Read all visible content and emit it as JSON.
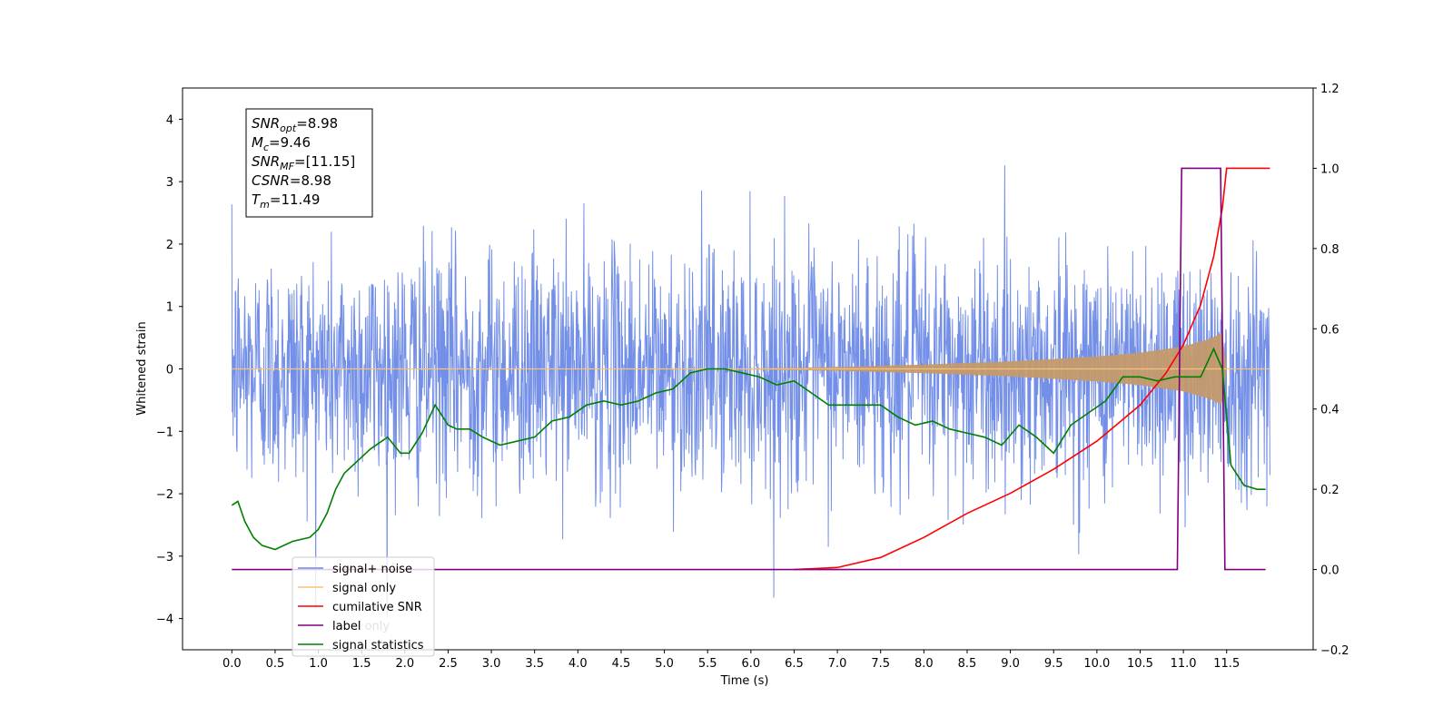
{
  "chart_data": {
    "type": "line",
    "xlabel": "Time (s)",
    "ylabel": "Whitened strain",
    "xlim": [
      -0.57,
      12.5
    ],
    "ylim": [
      -4.5,
      4.5
    ],
    "y2lim": [
      -0.2,
      1.2
    ],
    "x_ticks": [
      "0.0",
      "0.5",
      "1.0",
      "1.5",
      "2.0",
      "2.5",
      "3.0",
      "3.5",
      "4.0",
      "4.5",
      "5.0",
      "5.5",
      "6.0",
      "6.5",
      "7.0",
      "7.5",
      "8.0",
      "8.5",
      "9.0",
      "9.5",
      "10.0",
      "10.5",
      "11.0",
      "11.5"
    ],
    "y_ticks": [
      "4",
      "3",
      "2",
      "1",
      "0",
      "−1",
      "−2",
      "−3",
      "−4"
    ],
    "y2_ticks": [
      "1.2",
      "1.0",
      "0.8",
      "0.6",
      "0.4",
      "0.2",
      "0.0",
      "−0.2"
    ],
    "annotation": {
      "lines": [
        {
          "main": "SNR",
          "sub": "opt",
          "value": "=8.98"
        },
        {
          "main": "M",
          "sub": "c",
          "value": "=9.46"
        },
        {
          "main": "SNR",
          "sub": "MF",
          "value": "=[11.15]"
        },
        {
          "main": "CSNR",
          "sub": "",
          "value": "=8.98"
        },
        {
          "main": "T",
          "sub": "m",
          "value": "=11.49"
        }
      ]
    },
    "legend": {
      "position": "lower-left",
      "entries": [
        {
          "label": "signal+ noise",
          "color": "#6b89e6"
        },
        {
          "label": "signal only",
          "color": "#f5c27a"
        },
        {
          "label": "cumilative SNR",
          "color": "#ff0000"
        },
        {
          "label": "label",
          "color": "#800080"
        },
        {
          "label": "signal statistics",
          "color": "#008000"
        }
      ],
      "hidden_text": "label only"
    },
    "series": [
      {
        "name": "signal+ noise",
        "axis": "left",
        "color": "#6b89e6",
        "style": "random noise, sigma ~1, approx range -4 to 4.1 over t in [0, 12]"
      },
      {
        "name": "signal only",
        "axis": "left",
        "color": "#c49a6c",
        "envelope": {
          "x": [
            0,
            6.0,
            7.0,
            8.0,
            9.0,
            10.0,
            10.5,
            11.0,
            11.3,
            11.45,
            11.5,
            12.0
          ],
          "amp": [
            0.0,
            0.01,
            0.03,
            0.07,
            0.12,
            0.2,
            0.26,
            0.36,
            0.48,
            0.58,
            0.0,
            0.0
          ]
        }
      },
      {
        "name": "cumilative SNR",
        "axis": "right",
        "color": "#ff0000",
        "x": [
          6.5,
          7.0,
          7.5,
          8.0,
          8.5,
          9.0,
          9.5,
          10.0,
          10.5,
          10.8,
          11.0,
          11.2,
          11.35,
          11.45,
          11.5,
          12.0
        ],
        "y": [
          0.0,
          0.005,
          0.03,
          0.08,
          0.14,
          0.19,
          0.25,
          0.32,
          0.41,
          0.49,
          0.56,
          0.66,
          0.78,
          0.9,
          1.0,
          1.0
        ]
      },
      {
        "name": "label",
        "axis": "right",
        "color": "#800080",
        "x": [
          0.0,
          10.93,
          10.98,
          11.43,
          11.48,
          11.95
        ],
        "y": [
          0.0,
          0.0,
          1.0,
          1.0,
          0.0,
          0.0
        ]
      },
      {
        "name": "signal statistics",
        "axis": "right",
        "color": "#008000",
        "x": [
          0.0,
          0.07,
          0.15,
          0.25,
          0.35,
          0.5,
          0.7,
          0.9,
          1.0,
          1.1,
          1.2,
          1.3,
          1.45,
          1.6,
          1.8,
          1.95,
          2.05,
          2.2,
          2.35,
          2.5,
          2.6,
          2.75,
          2.9,
          3.1,
          3.3,
          3.5,
          3.7,
          3.9,
          4.1,
          4.3,
          4.5,
          4.7,
          4.9,
          5.1,
          5.3,
          5.5,
          5.7,
          5.9,
          6.1,
          6.3,
          6.5,
          6.7,
          6.9,
          7.1,
          7.3,
          7.5,
          7.7,
          7.9,
          8.1,
          8.3,
          8.5,
          8.7,
          8.9,
          9.1,
          9.3,
          9.5,
          9.7,
          9.9,
          10.1,
          10.3,
          10.5,
          10.7,
          10.9,
          11.05,
          11.2,
          11.35,
          11.45,
          11.55,
          11.7,
          11.85,
          11.95
        ],
        "y": [
          0.16,
          0.17,
          0.12,
          0.08,
          0.06,
          0.05,
          0.07,
          0.08,
          0.1,
          0.14,
          0.2,
          0.24,
          0.27,
          0.3,
          0.33,
          0.29,
          0.29,
          0.34,
          0.41,
          0.36,
          0.35,
          0.35,
          0.33,
          0.31,
          0.32,
          0.33,
          0.37,
          0.38,
          0.41,
          0.42,
          0.41,
          0.42,
          0.44,
          0.45,
          0.49,
          0.5,
          0.5,
          0.49,
          0.48,
          0.46,
          0.47,
          0.44,
          0.41,
          0.41,
          0.41,
          0.41,
          0.38,
          0.36,
          0.37,
          0.35,
          0.34,
          0.33,
          0.31,
          0.36,
          0.33,
          0.29,
          0.36,
          0.39,
          0.42,
          0.48,
          0.48,
          0.47,
          0.48,
          0.48,
          0.48,
          0.55,
          0.5,
          0.26,
          0.21,
          0.2,
          0.2
        ]
      }
    ]
  }
}
